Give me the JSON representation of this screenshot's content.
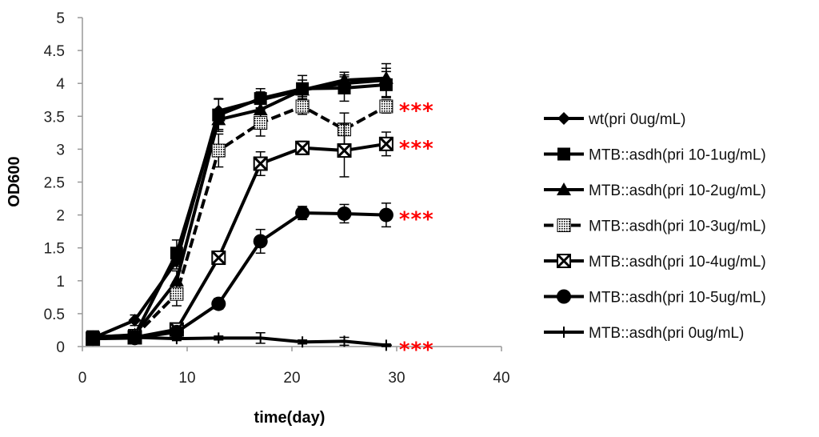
{
  "chart_data": {
    "type": "line",
    "title": "",
    "xlabel": "time(day)",
    "ylabel": "OD600",
    "xlim": [
      0,
      40
    ],
    "ylim": [
      0,
      5
    ],
    "x_ticks": [
      0,
      10,
      20,
      30,
      40
    ],
    "y_ticks": [
      0,
      0.5,
      1,
      1.5,
      2,
      2.5,
      3,
      3.5,
      4,
      4.5,
      5
    ],
    "x_tick_labels": [
      "0",
      "10",
      "20",
      "30",
      "40"
    ],
    "y_tick_labels": [
      "0",
      "0.5",
      "1",
      "1.5",
      "2",
      "2.5",
      "3",
      "3.5",
      "4",
      "4.5",
      "5"
    ],
    "grid": false,
    "legend_position": "right",
    "series": [
      {
        "name": "wt(pri 0ug/mL)",
        "marker": "diamond",
        "x": [
          1,
          5,
          9,
          13,
          17,
          21,
          25,
          29
        ],
        "y": [
          0.13,
          0.4,
          1.3,
          3.58,
          3.75,
          3.9,
          4.0,
          4.05
        ],
        "err": [
          0.05,
          0.08,
          0.12,
          0.18,
          0.12,
          0.1,
          0.1,
          0.25
        ]
      },
      {
        "name": "MTB::asdh(pri 10-1ug/mL)",
        "marker": "square",
        "x": [
          1,
          5,
          9,
          13,
          17,
          21,
          25,
          29
        ],
        "y": [
          0.15,
          0.17,
          1.42,
          3.52,
          3.77,
          3.92,
          3.93,
          3.98
        ],
        "err": [
          0.05,
          0.05,
          0.2,
          0.25,
          0.15,
          0.2,
          0.2,
          0.2
        ]
      },
      {
        "name": "MTB::asdh(pri 10-2ug/mL)",
        "marker": "triangle",
        "x": [
          1,
          5,
          9,
          13,
          17,
          21,
          25,
          29
        ],
        "y": [
          0.14,
          0.18,
          1.0,
          3.45,
          3.6,
          3.9,
          4.05,
          4.08
        ],
        "err": [
          0.05,
          0.05,
          0.15,
          0.15,
          0.15,
          0.15,
          0.12,
          0.15
        ]
      },
      {
        "name": "MTB::asdh(pri 10-3ug/mL)",
        "marker": "dotted-square",
        "x": [
          1,
          5,
          9,
          13,
          17,
          21,
          25,
          29
        ],
        "y": [
          0.12,
          0.16,
          0.8,
          2.98,
          3.4,
          3.65,
          3.3,
          3.65
        ],
        "err": [
          0.05,
          0.05,
          0.18,
          0.25,
          0.2,
          0.12,
          0.25,
          0.1
        ]
      },
      {
        "name": "MTB::asdh(pri 10-4ug/mL)",
        "marker": "x-square",
        "x": [
          1,
          5,
          9,
          13,
          17,
          21,
          25,
          29
        ],
        "y": [
          0.12,
          0.14,
          0.26,
          1.35,
          2.78,
          3.02,
          2.98,
          3.08
        ],
        "err": [
          0.05,
          0.05,
          0.08,
          0.1,
          0.18,
          0.1,
          0.4,
          0.18
        ]
      },
      {
        "name": "MTB::asdh(pri 10-5ug/mL)",
        "marker": "circle",
        "x": [
          1,
          5,
          9,
          13,
          17,
          21,
          25,
          29
        ],
        "y": [
          0.12,
          0.13,
          0.22,
          0.65,
          1.6,
          2.03,
          2.02,
          2.0
        ],
        "err": [
          0.05,
          0.05,
          0.06,
          0.08,
          0.18,
          0.1,
          0.14,
          0.18
        ]
      },
      {
        "name": "MTB::asdh(pri 0ug/mL)",
        "marker": "plus",
        "x": [
          1,
          5,
          9,
          13,
          17,
          21,
          25,
          29
        ],
        "y": [
          0.12,
          0.14,
          0.12,
          0.13,
          0.13,
          0.07,
          0.08,
          0.02
        ],
        "err": [
          0.03,
          0.03,
          0.03,
          0.03,
          0.08,
          0.03,
          0.06,
          0.02
        ]
      }
    ],
    "annotations": [
      {
        "text": "***",
        "x": 29,
        "y": 3.65,
        "color": "#ff0000"
      },
      {
        "text": "***",
        "x": 29,
        "y": 3.08,
        "color": "#ff0000"
      },
      {
        "text": "***",
        "x": 29,
        "y": 2.0,
        "color": "#ff0000"
      },
      {
        "text": "***",
        "x": 29,
        "y": 0.02,
        "color": "#ff0000"
      }
    ],
    "colors": {
      "series": "#000000",
      "significance": "#ff0000"
    }
  }
}
